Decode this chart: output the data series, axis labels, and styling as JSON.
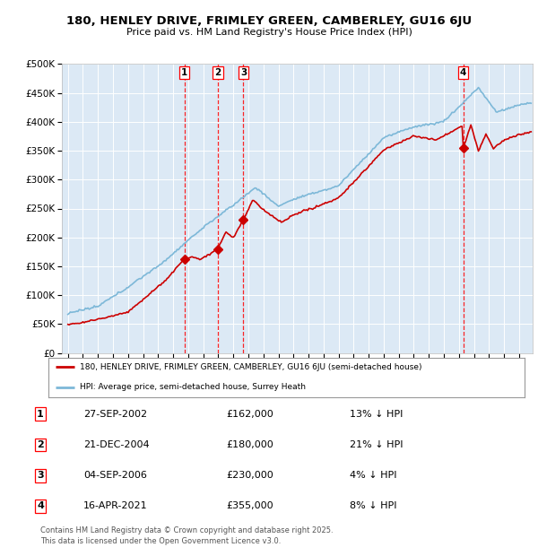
{
  "title_line1": "180, HENLEY DRIVE, FRIMLEY GREEN, CAMBERLEY, GU16 6JU",
  "title_line2": "Price paid vs. HM Land Registry's House Price Index (HPI)",
  "plot_bg_color": "#dce9f5",
  "transactions": [
    {
      "num": 1,
      "date": "27-SEP-2002",
      "price": 162000,
      "hpi_diff": "13% ↓ HPI",
      "x_year": 2002.74
    },
    {
      "num": 2,
      "date": "21-DEC-2004",
      "price": 180000,
      "hpi_diff": "21% ↓ HPI",
      "x_year": 2004.97
    },
    {
      "num": 3,
      "date": "04-SEP-2006",
      "price": 230000,
      "hpi_diff": "4% ↓ HPI",
      "x_year": 2006.67
    },
    {
      "num": 4,
      "date": "16-APR-2021",
      "price": 355000,
      "hpi_diff": "8% ↓ HPI",
      "x_year": 2021.29
    }
  ],
  "legend_red": "180, HENLEY DRIVE, FRIMLEY GREEN, CAMBERLEY, GU16 6JU (semi-detached house)",
  "legend_blue": "HPI: Average price, semi-detached house, Surrey Heath",
  "footnote1": "Contains HM Land Registry data © Crown copyright and database right 2025.",
  "footnote2": "This data is licensed under the Open Government Licence v3.0.",
  "ylim": [
    0,
    500000
  ],
  "xlim_start": 1994.6,
  "xlim_end": 2025.9,
  "yticks": [
    0,
    50000,
    100000,
    150000,
    200000,
    250000,
    300000,
    350000,
    400000,
    450000,
    500000
  ],
  "red_color": "#cc0000",
  "blue_color": "#7db8d8"
}
